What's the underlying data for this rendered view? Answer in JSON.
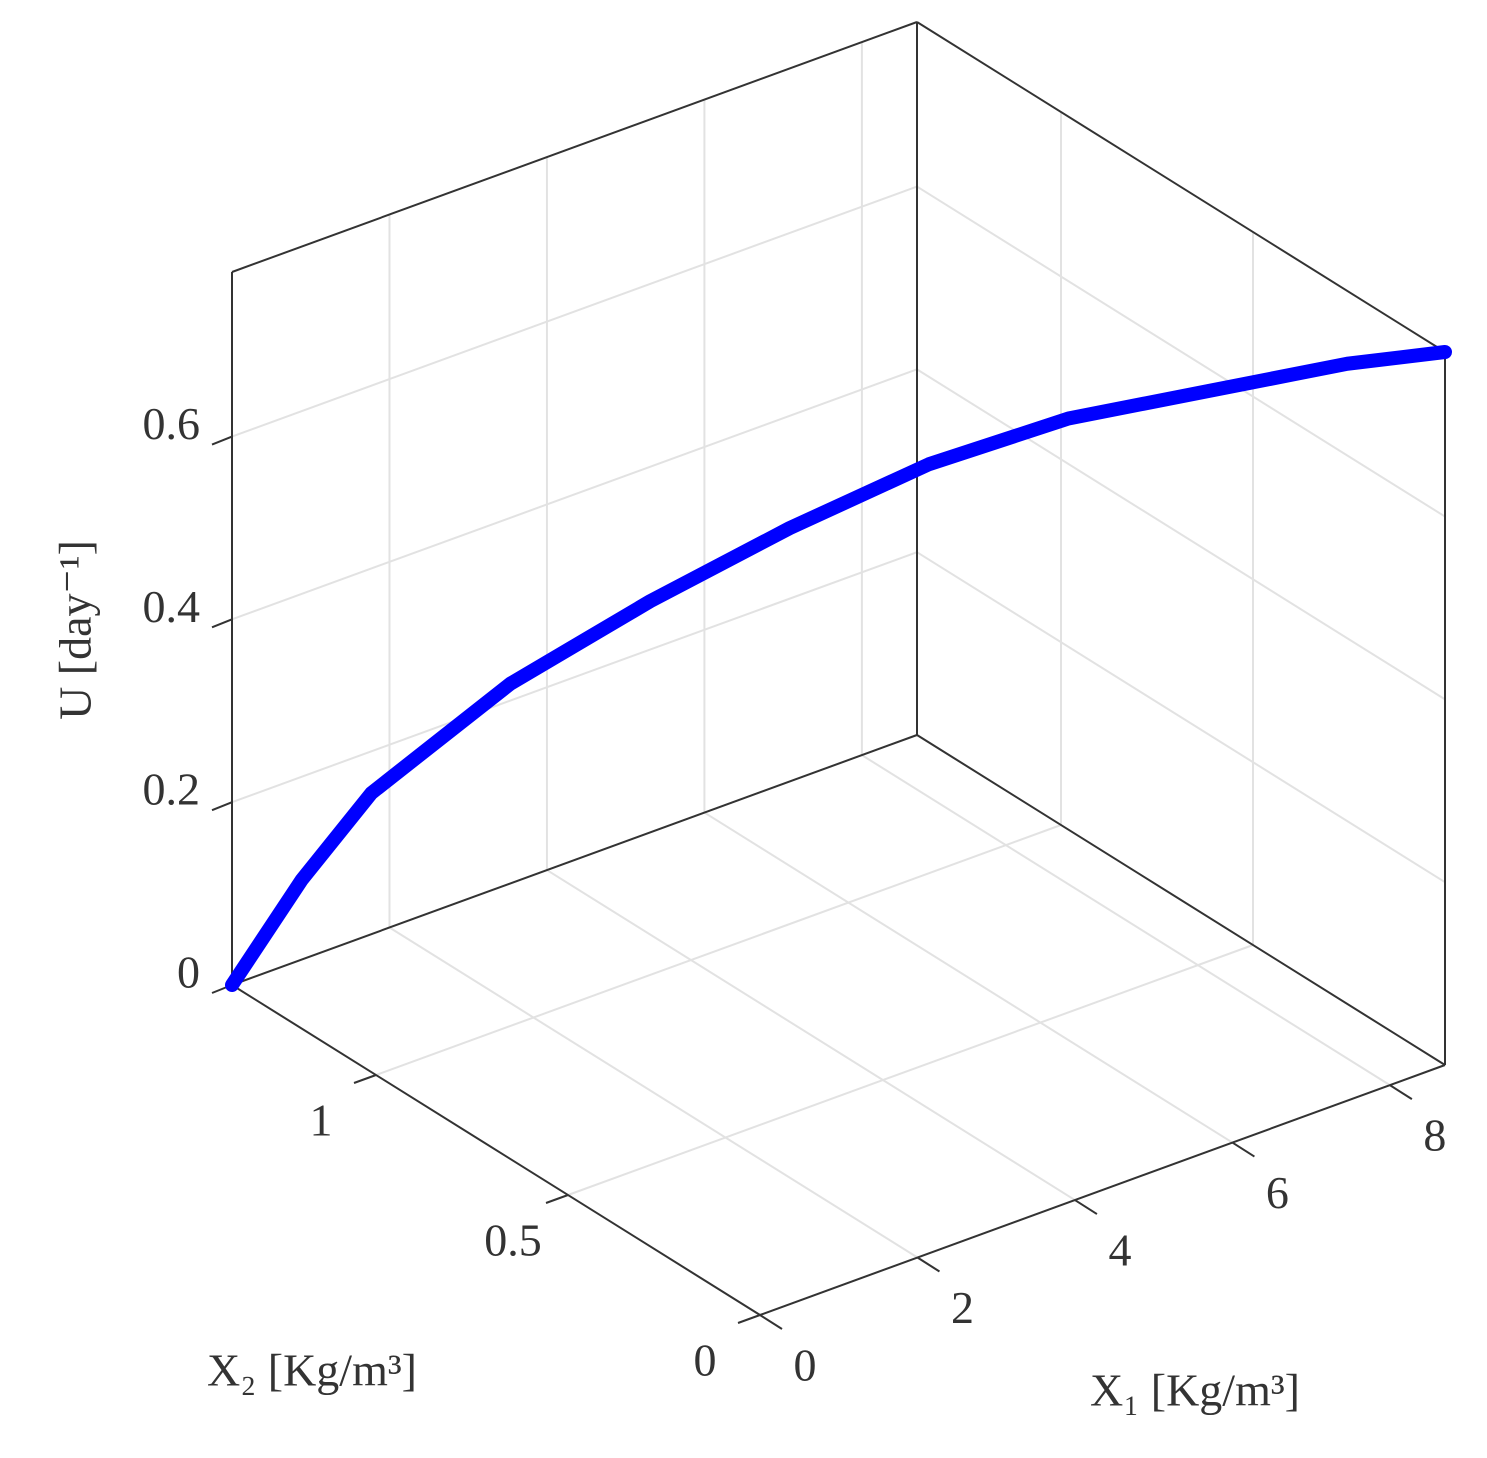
{
  "chart_data": {
    "type": "line3d",
    "xlabel": "X₁ [Kg/m³]",
    "ylabel": "X₂ [Kg/m³]",
    "zlabel": "U [day⁻¹]",
    "xlim": [
      0,
      8.7
    ],
    "ylim": [
      0,
      1.375
    ],
    "zlim": [
      0,
      0.78
    ],
    "xticks": [
      0,
      2,
      4,
      6,
      8
    ],
    "yticks": [
      0,
      0.5,
      1
    ],
    "zticks": [
      0,
      0.2,
      0.4,
      0.6
    ],
    "grid": true,
    "series": [
      {
        "color": "#0000ff",
        "x": [
          0,
          0.5,
          1,
          2,
          3,
          4,
          5,
          6,
          7,
          8,
          8.7
        ],
        "y": [
          1.375,
          1.296,
          1.217,
          1.059,
          0.901,
          0.743,
          0.585,
          0.427,
          0.269,
          0.111,
          0
        ],
        "z": [
          0,
          0.12,
          0.22,
          0.35,
          0.45,
          0.54,
          0.62,
          0.68,
          0.72,
          0.76,
          0.78
        ]
      }
    ]
  }
}
